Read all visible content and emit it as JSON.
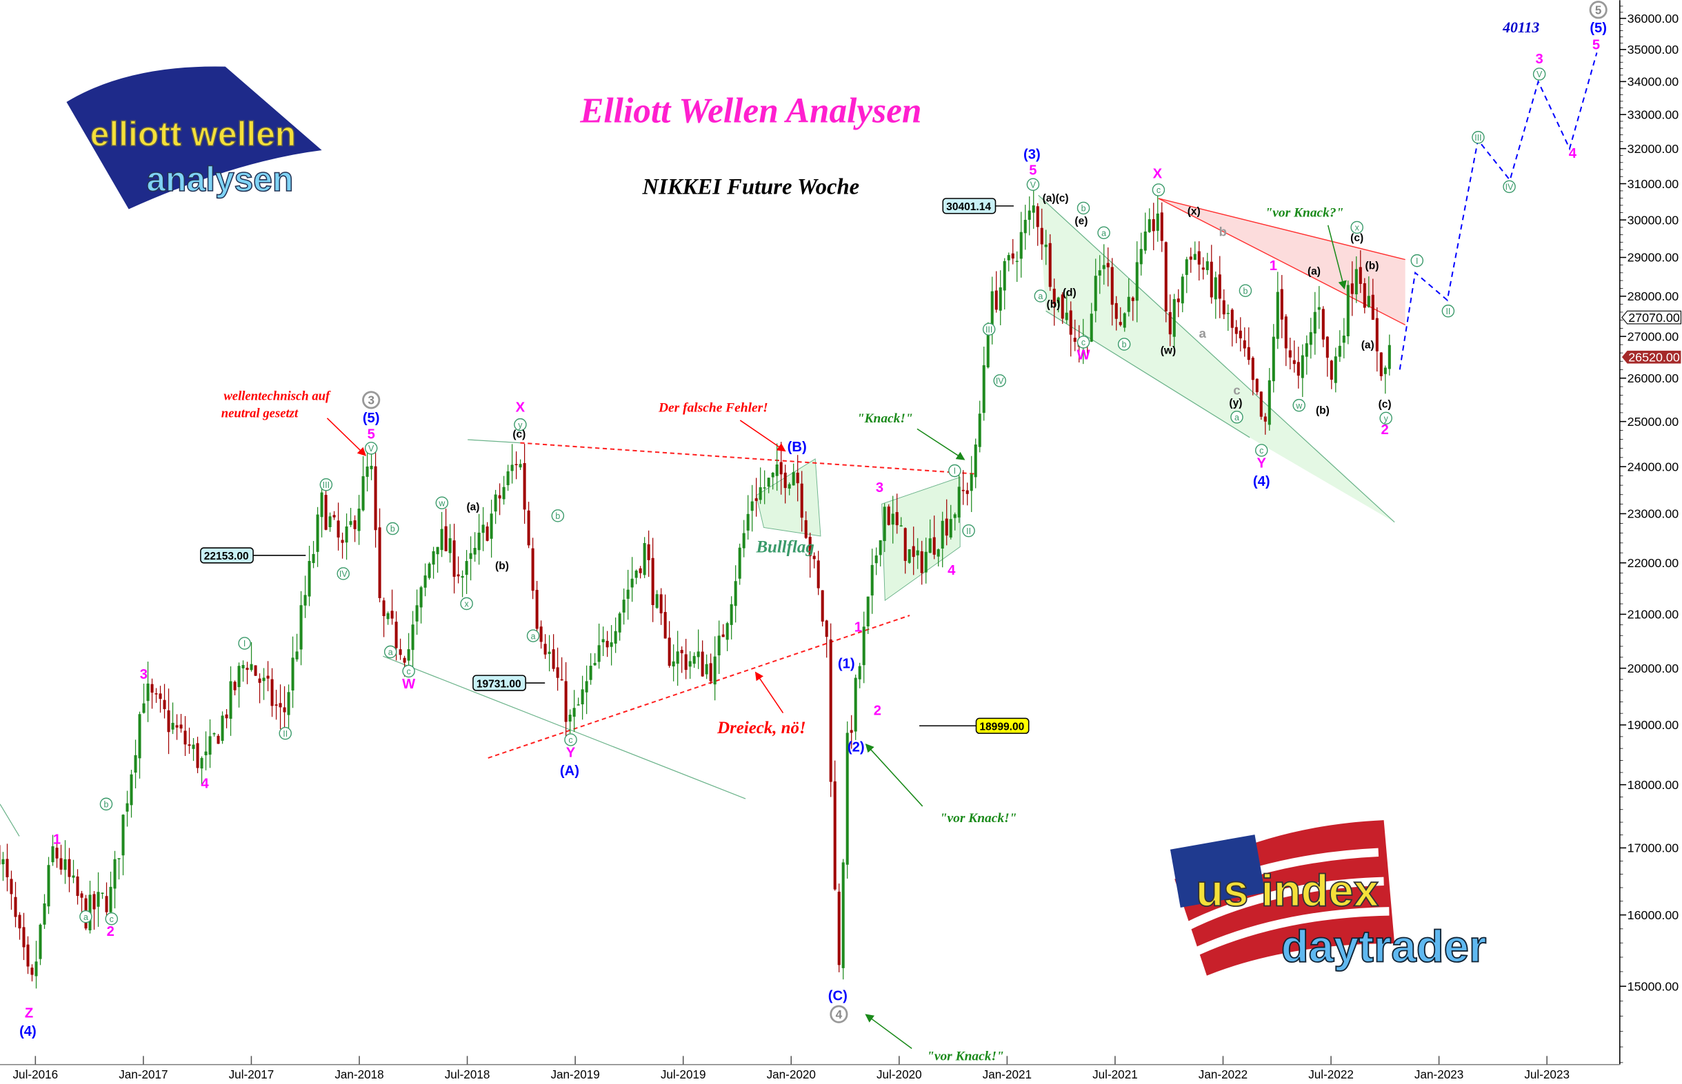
{
  "title": "Elliott Wellen Analysen",
  "subtitle": "NIKKEI Future Woche",
  "logos": {
    "top_left": "elliott wellen analysen",
    "bottom_right": "us index daytrader"
  },
  "colors": {
    "bull_candle": "#1f8a1f",
    "bear_candle": "#a00000",
    "wave_primary": "#ff00ff",
    "wave_intermediate": "#0000ff",
    "wave_minor": "#3a9a6a",
    "annotation_red": "#ff0000",
    "annotation_green": "#1a8a1a",
    "last_price_box": "#a52a2a"
  },
  "chart_data": {
    "type": "candlestick",
    "y_scale": "log",
    "ylim": [
      13800,
      36500
    ],
    "yticks": [
      "15000.00",
      "16000.00",
      "17000.00",
      "18000.00",
      "19000.00",
      "20000.00",
      "21000.00",
      "22000.00",
      "23000.00",
      "24000.00",
      "25000.00",
      "26000.00",
      "27000.00",
      "28000.00",
      "29000.00",
      "30000.00",
      "31000.00",
      "32000.00",
      "33000.00",
      "34000.00",
      "35000.00",
      "36000.00"
    ],
    "xticks": [
      "Jul-2016",
      "Jan-2017",
      "Jul-2017",
      "Jan-2018",
      "Jul-2018",
      "Jan-2019",
      "Jul-2019",
      "Jan-2020",
      "Jul-2020",
      "Jan-2021",
      "Jul-2021",
      "Jan-2022",
      "Jul-2022",
      "Jan-2023",
      "Jul-2023"
    ],
    "grid": false,
    "price_path": [
      [
        "2016-05-01",
        17000
      ],
      [
        "2016-06-24",
        14900
      ],
      [
        "2016-08-01",
        17000
      ],
      [
        "2016-09-24",
        16000
      ],
      [
        "2016-11-07",
        16300
      ],
      [
        "2017-01-01",
        19600
      ],
      [
        "2017-04-14",
        18300
      ],
      [
        "2017-06-24",
        20200
      ],
      [
        "2017-08-25",
        19100
      ],
      [
        "2017-10-30",
        23200
      ],
      [
        "2017-12-05",
        22200
      ],
      [
        "2018-01-20",
        24100
      ],
      [
        "2018-02-06",
        20900
      ],
      [
        "2018-03-24",
        20300
      ],
      [
        "2018-05-12",
        22600
      ],
      [
        "2018-06-28",
        21700
      ],
      [
        "2018-09-28",
        24300
      ],
      [
        "2018-10-28",
        21000
      ],
      [
        "2018-12-25",
        19000
      ],
      [
        "2019-04-28",
        22300
      ],
      [
        "2019-06-03",
        20300
      ],
      [
        "2019-08-25",
        20000
      ],
      [
        "2019-10-28",
        23400
      ],
      [
        "2020-01-08",
        24000
      ],
      [
        "2020-03-01",
        20500
      ],
      [
        "2020-03-20",
        15000
      ],
      [
        "2020-04-05",
        18600
      ],
      [
        "2020-06-05",
        23200
      ],
      [
        "2020-07-30",
        21900
      ],
      [
        "2020-10-23",
        23500
      ],
      [
        "2020-11-10",
        24300
      ],
      [
        "2020-11-28",
        27500
      ],
      [
        "2021-02-17",
        30400
      ],
      [
        "2021-03-25",
        28000
      ],
      [
        "2021-05-08",
        26700
      ],
      [
        "2021-06-13",
        29000
      ],
      [
        "2021-07-12",
        27300
      ],
      [
        "2021-09-13",
        30300
      ],
      [
        "2021-10-01",
        27000
      ],
      [
        "2021-11-06",
        29300
      ],
      [
        "2021-12-13",
        28300
      ],
      [
        "2022-02-06",
        26500
      ],
      [
        "2022-03-14",
        24700
      ],
      [
        "2022-04-01",
        28000
      ],
      [
        "2022-05-08",
        25800
      ],
      [
        "2022-06-13",
        28000
      ],
      [
        "2022-07-01",
        25800
      ],
      [
        "2022-08-15",
        29000
      ],
      [
        "2022-10-01",
        26000
      ],
      [
        "2022-10-12",
        27070
      ]
    ],
    "forecast_path": [
      [
        "2022-10-27",
        26200
      ],
      [
        "2022-11-22",
        28600
      ],
      [
        "2023-01-15",
        27900
      ],
      [
        "2023-03-08",
        32250
      ],
      [
        "2023-05-01",
        31100
      ],
      [
        "2023-06-18",
        34000
      ],
      [
        "2023-08-10",
        32000
      ],
      [
        "2023-09-25",
        34900
      ]
    ],
    "target": "40113",
    "price_markers": {
      "last": "26520.00",
      "prev": "27070.00",
      "high_2021": "30401.14",
      "level_2018": "22153.00",
      "level_2019": "19731.00",
      "level_2020": "18999.00"
    }
  },
  "labels": {
    "magenta": [
      "Z",
      "1",
      "2",
      "3",
      "4",
      "5",
      "W",
      "X",
      "Y",
      "3",
      "4",
      "1",
      "2",
      "5",
      "W",
      "X",
      "1",
      "Y",
      "2",
      "3",
      "4",
      "5"
    ],
    "blue": [
      "(4)",
      "(5)",
      "(A)",
      "(B)",
      "(1)",
      "(2)",
      "(C)",
      "(3)",
      "(4)",
      "(5)"
    ],
    "gray_circled": [
      "3",
      "4",
      "5"
    ],
    "green_circled": [
      "a",
      "b",
      "c",
      "I",
      "II",
      "III",
      "IV",
      "V",
      "b",
      "a",
      "c",
      "w",
      "x",
      "y",
      "b",
      "a",
      "c",
      "I",
      "II",
      "III",
      "IV",
      "V",
      "a",
      "c",
      "b",
      "a",
      "b",
      "c",
      "b",
      "a",
      "c",
      "w",
      "x",
      "y",
      "I",
      "II",
      "III",
      "IV",
      "V"
    ],
    "black": [
      "(a)",
      "(b)",
      "(c)",
      "(a)(c)",
      "(e)",
      "(d)",
      "(b)",
      "(x)",
      "(w)",
      "(y)",
      "(a)",
      "(b)",
      "(c)",
      "(b)",
      "(a)",
      "(c)"
    ],
    "gray": [
      "b",
      "a",
      "c"
    ]
  },
  "annotations": {
    "neutral_1": "wellentechnisch auf",
    "neutral_2": "neutral gesetzt",
    "falsche_fehler": "Der falsche Fehler!",
    "dreieck": "Dreieck, nö!",
    "knack": "\"Knack!\"",
    "bullflag": "Bullflag",
    "vor_knack_q": "\"vor Knack?\"",
    "vor_knack_1": "\"vor Knack!\"",
    "vor_knack_2": "\"vor Knack!\""
  }
}
